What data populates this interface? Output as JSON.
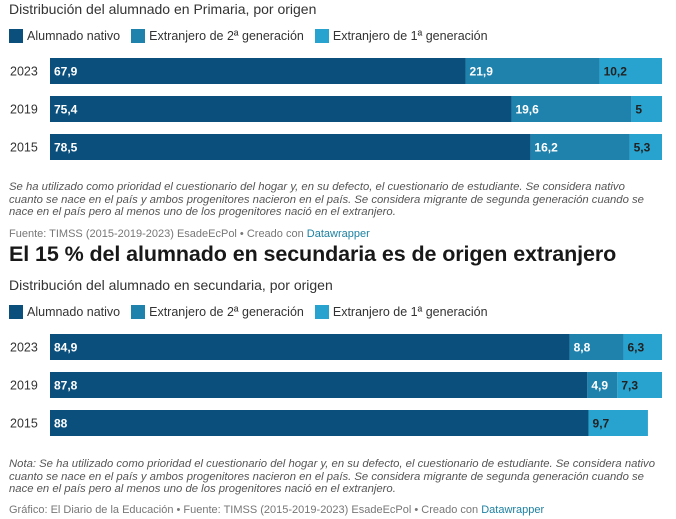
{
  "colors": {
    "nativo": "#0b4f7c",
    "segunda": "#1f82ad",
    "primera": "#28a3cf",
    "label_light": "#ffffff",
    "label_dark": "#222222",
    "link": "#1d81a2"
  },
  "legend": [
    {
      "label": "Alumnado nativo",
      "color": "#0b4f7c"
    },
    {
      "label": "Extranjero de 2ª generación",
      "color": "#1f82ad"
    },
    {
      "label": "Extranjero de 1ª generación",
      "color": "#28a3cf"
    }
  ],
  "chart1": {
    "subtitle": "Distribución del alumnado en Primaria, por origen",
    "note": "Se ha utilizado como prioridad el cuestionario del hogar y, en su defecto, el cuestionario de estudiante. Se considera nativo cuanto se nace en el país y ambos progenitores nacieron en el país. Se considera migrante de segunda generación cuando se nace en el país pero al menos uno de los progenitores nació en el extranjero.",
    "footer_text": "Fuente: TIMSS (2015-2019-2023) EsadeEcPol • Creado con ",
    "footer_link": "Datawrapper"
  },
  "chart2": {
    "title": "El 15 % del alumnado en secundaria es de origen extranjero",
    "subtitle": "Distribución del alumnado en secundaria, por origen",
    "note": "Nota: Se ha utilizado como prioridad el cuestionario del hogar y, en su defecto, el cuestionario de estudiante. Se considera nativo cuanto se nace en el país y ambos progenitores nacieron en el país. Se considera migrante de segunda generación cuando se nace en el país pero al menos uno de los progenitores nació en el extranjero.",
    "footer_text": "Gráfico: El Diario de la Educación • Fuente: TIMSS (2015-2019-2023) EsadeEcPol • Creado con ",
    "footer_link": "Datawrapper"
  },
  "chart_data": [
    {
      "type": "bar",
      "stacked": true,
      "orientation": "horizontal",
      "title": "",
      "subtitle": "Distribución del alumnado en Primaria, por origen",
      "categories": [
        "2023",
        "2019",
        "2015"
      ],
      "series": [
        {
          "name": "Alumnado nativo",
          "values": [
            67.9,
            75.4,
            78.5
          ],
          "labels": [
            "67,9",
            "75,4",
            "78,5"
          ]
        },
        {
          "name": "Extranjero de 2ª generación",
          "values": [
            21.9,
            19.6,
            16.2
          ],
          "labels": [
            "21,9",
            "19,6",
            "16,2"
          ]
        },
        {
          "name": "Extranjero de 1ª generación",
          "values": [
            10.2,
            5,
            5.3
          ],
          "labels": [
            "10,2",
            "5",
            "5,3"
          ]
        }
      ],
      "xlim": [
        0,
        100
      ],
      "grid": false,
      "legend_position": "top-left"
    },
    {
      "type": "bar",
      "stacked": true,
      "orientation": "horizontal",
      "title": "El 15 % del alumnado en secundaria es de origen extranjero",
      "subtitle": "Distribución del alumnado en secundaria, por origen",
      "categories": [
        "2023",
        "2019",
        "2015"
      ],
      "series": [
        {
          "name": "Alumnado nativo",
          "values": [
            84.9,
            87.8,
            88
          ],
          "labels": [
            "84,9",
            "87,8",
            "88"
          ]
        },
        {
          "name": "Extranjero de 2ª generación",
          "values": [
            8.8,
            4.9,
            0
          ],
          "labels": [
            "8,8",
            "4,9",
            ""
          ]
        },
        {
          "name": "Extranjero de 1ª generación",
          "values": [
            6.3,
            7.3,
            9.7
          ],
          "labels": [
            "6,3",
            "7,3",
            "9,7"
          ]
        }
      ],
      "xlim": [
        0,
        100
      ],
      "grid": false,
      "legend_position": "top-left"
    }
  ]
}
